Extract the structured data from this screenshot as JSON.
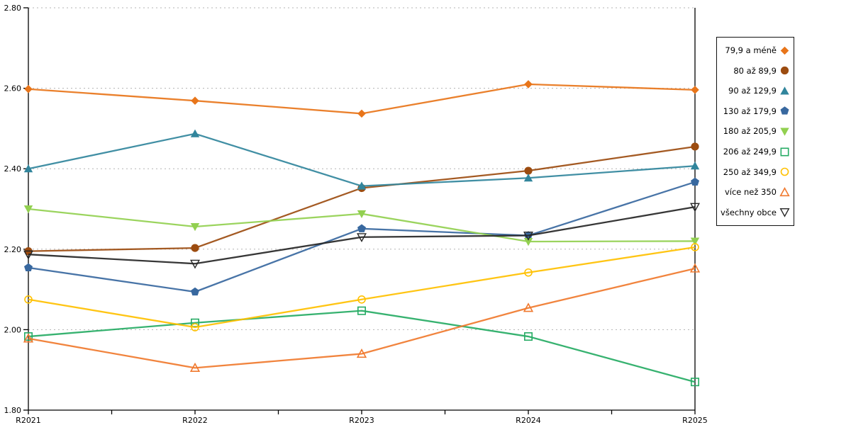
{
  "chart_data": {
    "type": "line",
    "title": "",
    "xlabel": "",
    "ylabel": "",
    "categories": [
      "R2021",
      "R2022",
      "R2023",
      "R2024",
      "R2025"
    ],
    "ylim": [
      1.8,
      2.8
    ],
    "y_ticks": [
      {
        "value": 2.8,
        "label": "2.80"
      },
      {
        "value": 2.6,
        "label": "2.60"
      },
      {
        "value": 2.4,
        "label": "2.40"
      },
      {
        "value": 2.2,
        "label": "2.20"
      },
      {
        "value": 2.0,
        "label": "2.00"
      },
      {
        "value": 1.8,
        "label": "1.80"
      }
    ],
    "grid": "horizontal-dotted",
    "legend_position": "right",
    "axis_color": "#000000",
    "grid_color": "#B3B3B3",
    "series": [
      {
        "name": "79,9 a méně",
        "marker": "diamond",
        "fill": "solid",
        "color": "#E8751A",
        "values": [
          2.598,
          2.569,
          2.537,
          2.61,
          2.596
        ]
      },
      {
        "name": "80 až 89,9",
        "marker": "circle",
        "fill": "solid",
        "color": "#9C4C10",
        "values": [
          2.195,
          2.203,
          2.352,
          2.395,
          2.455
        ]
      },
      {
        "name": "90 až 129,9",
        "marker": "triangle",
        "fill": "solid",
        "color": "#31859C",
        "values": [
          2.4,
          2.487,
          2.357,
          2.377,
          2.407
        ]
      },
      {
        "name": "130 až 179,9",
        "marker": "pentagon",
        "fill": "solid",
        "color": "#38689F",
        "values": [
          2.154,
          2.094,
          2.251,
          2.234,
          2.367
        ]
      },
      {
        "name": "180 až 205,9",
        "marker": "triangle-down",
        "fill": "solid",
        "color": "#92D050",
        "values": [
          2.3,
          2.256,
          2.288,
          2.219,
          2.22
        ]
      },
      {
        "name": "206 až 249,9",
        "marker": "square-open",
        "fill": "open",
        "color": "#26AB64",
        "values": [
          1.983,
          2.017,
          2.047,
          1.983,
          1.87
        ]
      },
      {
        "name": "250 až 349,9",
        "marker": "circle-open",
        "fill": "open",
        "color": "#FFC000",
        "values": [
          2.075,
          2.006,
          2.075,
          2.142,
          2.205
        ]
      },
      {
        "name": "více než 350",
        "marker": "triangle-open",
        "fill": "open",
        "color": "#F0792E",
        "values": [
          1.978,
          1.905,
          1.94,
          2.054,
          2.152
        ]
      },
      {
        "name": "všechny obce",
        "marker": "triangle-down-open",
        "fill": "open",
        "color": "#262626",
        "values": [
          2.187,
          2.164,
          2.23,
          2.234,
          2.305
        ]
      }
    ]
  }
}
